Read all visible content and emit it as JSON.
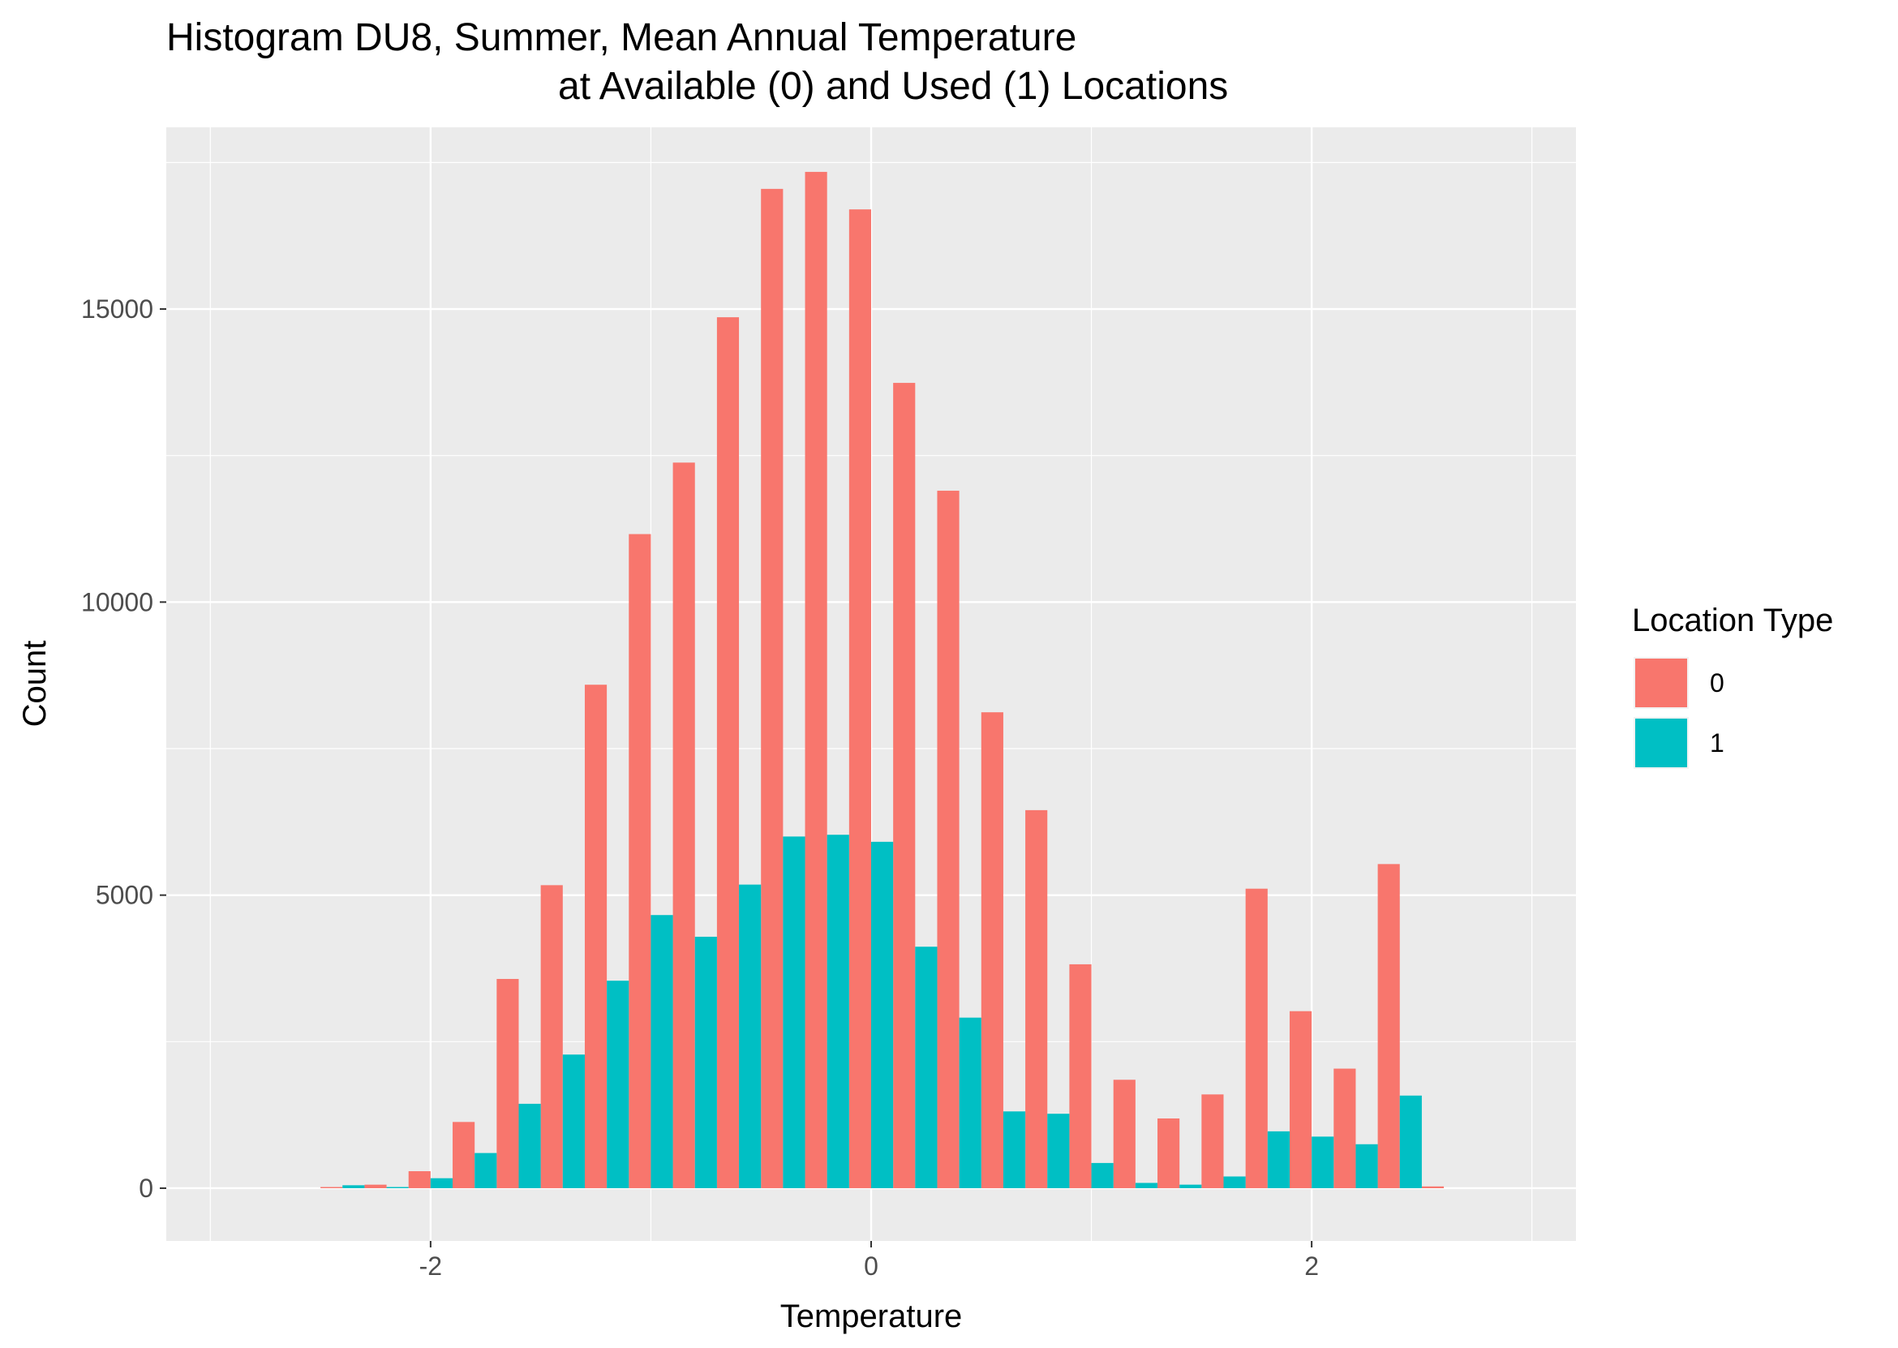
{
  "chart_data": {
    "type": "bar",
    "title_line1": "Histogram DU8, Summer, Mean Annual Temperature",
    "title_line2": "at Available (0) and Used (1) Locations",
    "xlabel": "Temperature",
    "ylabel": "Count",
    "xlim": [
      -3.2,
      3.2
    ],
    "ylim": [
      -900,
      18100
    ],
    "x_ticks": [
      -2,
      0,
      2
    ],
    "y_ticks": [
      0,
      5000,
      10000,
      15000
    ],
    "grid": true,
    "bin_width": 0.2,
    "bin_centers": [
      -2.4,
      -2.2,
      -2.0,
      -1.8,
      -1.6,
      -1.4,
      -1.2,
      -1.0,
      -0.8,
      -0.6,
      -0.4,
      -0.2,
      0.0,
      0.2,
      0.4,
      0.6,
      0.8,
      1.0,
      1.2,
      1.4,
      1.6,
      1.8,
      2.0,
      2.2,
      2.4,
      2.6
    ],
    "series": [
      {
        "name": "0",
        "color": "#F8766D",
        "values": [
          20,
          60,
          290,
          1130,
          3570,
          5170,
          8590,
          11160,
          12380,
          14860,
          17050,
          17340,
          16700,
          13740,
          11900,
          8120,
          6450,
          3820,
          1850,
          1190,
          1600,
          5110,
          3020,
          2040,
          5530,
          30
        ]
      },
      {
        "name": "1",
        "color": "#00BFC4",
        "values": [
          50,
          20,
          170,
          600,
          1440,
          2280,
          3540,
          4660,
          4290,
          5180,
          6000,
          6030,
          5910,
          4120,
          2910,
          1310,
          1270,
          430,
          90,
          60,
          200,
          970,
          880,
          750,
          1580,
          0
        ]
      }
    ],
    "legend": {
      "title": "Location Type",
      "position": "right",
      "labels": [
        "0",
        "1"
      ]
    }
  }
}
